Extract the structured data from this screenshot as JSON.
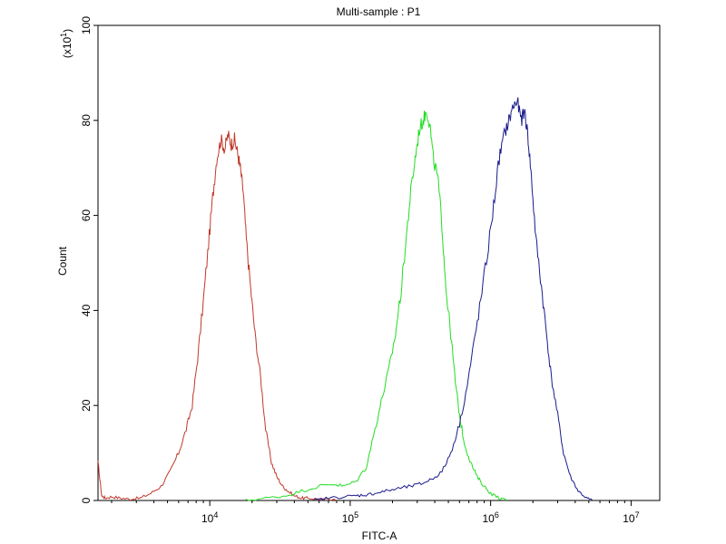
{
  "chart_data": {
    "type": "line",
    "title": "Multi-sample : P1",
    "xlabel": "FITC-A",
    "ylabel": "Count",
    "y_multiplier_label": "(x10",
    "y_multiplier_exponent": "1",
    "y_multiplier_close": ")",
    "xscale": "log",
    "xlim": [
      1600,
      16000000
    ],
    "ylim": [
      0,
      100
    ],
    "grid": false,
    "x_ticks": [
      {
        "value": 10000,
        "base": "10",
        "exp": "4"
      },
      {
        "value": 100000,
        "base": "10",
        "exp": "5"
      },
      {
        "value": 1000000,
        "base": "10",
        "exp": "6"
      },
      {
        "value": 10000000,
        "base": "10",
        "exp": "7"
      }
    ],
    "y_ticks": [
      {
        "value": 0,
        "label": "0"
      },
      {
        "value": 20,
        "label": "20"
      },
      {
        "value": 40,
        "label": "40"
      },
      {
        "value": 60,
        "label": "60"
      },
      {
        "value": 80,
        "label": "80"
      },
      {
        "value": 100,
        "label": "100"
      }
    ],
    "series": [
      {
        "color": "#c0392b",
        "x": [
          1600,
          1700,
          1800,
          2000,
          2300,
          2700,
          3200,
          3800,
          4500,
          5200,
          6000,
          6800,
          7500,
          8200,
          9000,
          9800,
          10500,
          11200,
          12000,
          12800,
          13500,
          14200,
          15000,
          15800,
          16500,
          17300,
          18200,
          19500,
          21000,
          23000,
          25000,
          27500,
          30000,
          33000,
          36000,
          40000,
          45000,
          50000,
          60000,
          80000
        ],
        "y": [
          8,
          1,
          0.5,
          0.8,
          0.5,
          0.3,
          0.5,
          1.5,
          3,
          6,
          10,
          15,
          20,
          30,
          42,
          54,
          64,
          72,
          76,
          74,
          77,
          75,
          76,
          73,
          70,
          65,
          55,
          45,
          35,
          26,
          15,
          8,
          5,
          3,
          2,
          1,
          0.5,
          0.5,
          0.3,
          0
        ]
      },
      {
        "color": "#22dd22",
        "x": [
          18000,
          25000,
          35000,
          45000,
          60000,
          75000,
          90000,
          110000,
          130000,
          150000,
          170000,
          190000,
          210000,
          230000,
          250000,
          270000,
          290000,
          310000,
          330000,
          350000,
          370000,
          390000,
          420000,
          450000,
          480000,
          520000,
          560000,
          600000,
          650000,
          720000,
          800000,
          900000,
          1000000,
          1150000,
          1300000
        ],
        "y": [
          0,
          0.5,
          1,
          2,
          3,
          3.5,
          3,
          4,
          7,
          15,
          22,
          28,
          35,
          44,
          55,
          65,
          72,
          78,
          80,
          82,
          79,
          72,
          68,
          58,
          45,
          35,
          25,
          18,
          12,
          8,
          5,
          3,
          1.5,
          0.5,
          0
        ]
      },
      {
        "color": "#1a1a8c",
        "x": [
          55000,
          70000,
          90000,
          110000,
          130000,
          150000,
          180000,
          220000,
          270000,
          320000,
          380000,
          450000,
          520000,
          600000,
          680000,
          760000,
          850000,
          950000,
          1050000,
          1150000,
          1250000,
          1350000,
          1450000,
          1550000,
          1650000,
          1750000,
          1850000,
          1950000,
          2100000,
          2300000,
          2500000,
          2700000,
          3000000,
          3300000,
          3700000,
          4200000,
          4800000,
          5300000
        ],
        "y": [
          0,
          0.5,
          0.8,
          1,
          1.2,
          1.5,
          2,
          2.5,
          3,
          3.5,
          4.5,
          6,
          10,
          16,
          24,
          33,
          42,
          52,
          62,
          72,
          77,
          80,
          83,
          84,
          80,
          82,
          76,
          68,
          55,
          45,
          35,
          26,
          18,
          10,
          5,
          2,
          0.5,
          0
        ]
      }
    ]
  }
}
